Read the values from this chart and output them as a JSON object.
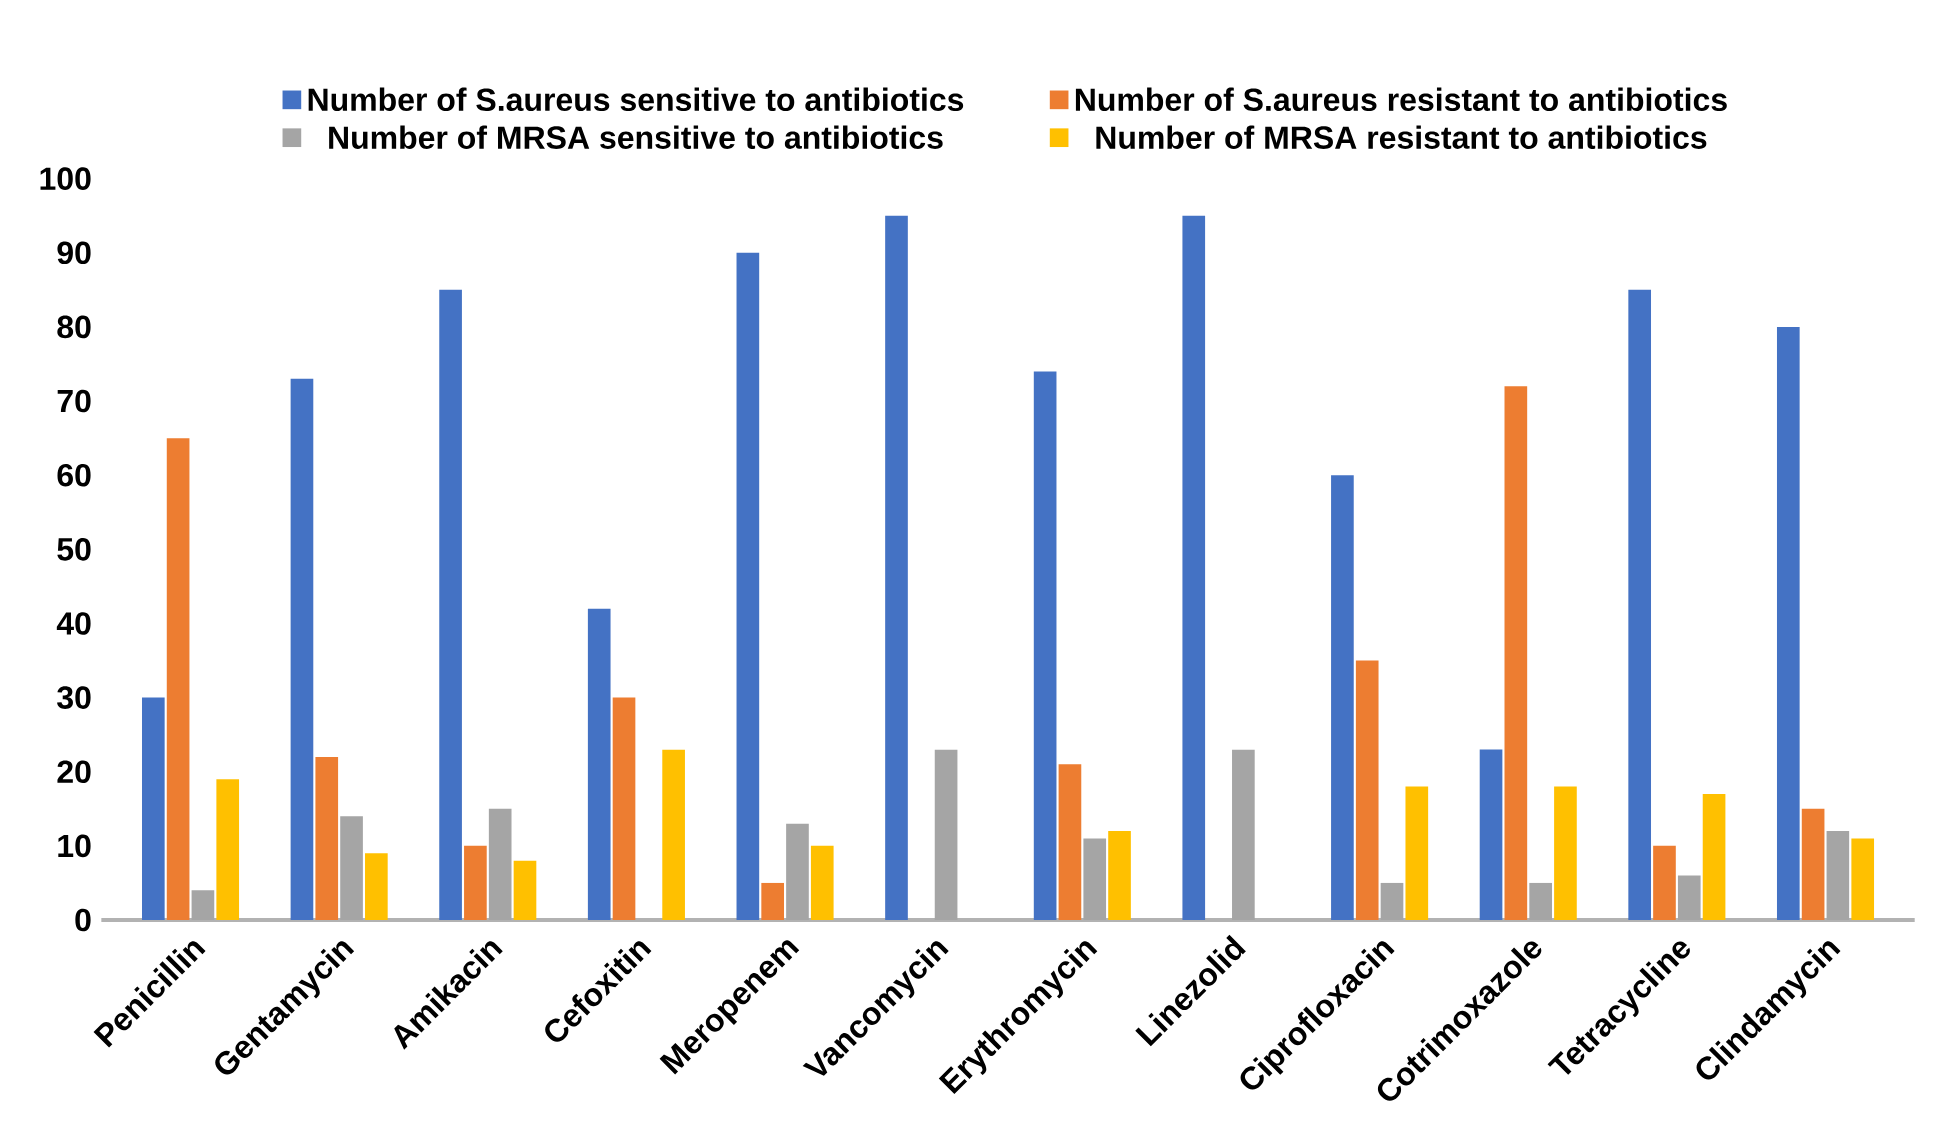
{
  "chart_data": {
    "type": "bar",
    "categories": [
      "Penicillin",
      "Gentamycin",
      "Amikacin",
      "Cefoxitin",
      "Meropenem",
      "Vancomycin",
      "Erythromycin",
      "Linezolid",
      "Ciprofloxacin",
      "Cotrimoxazole",
      "Tetracycline",
      "Clindamycin"
    ],
    "series": [
      {
        "name": "Number of S.aureus sensitive to antibiotics",
        "color": "#4472c4",
        "values": [
          30,
          73,
          85,
          42,
          90,
          95,
          74,
          95,
          60,
          23,
          85,
          80
        ]
      },
      {
        "name": "Number of S.aureus resistant to antibiotics",
        "color": "#ed7d31",
        "values": [
          65,
          22,
          10,
          30,
          5,
          0,
          21,
          0,
          35,
          72,
          10,
          15
        ]
      },
      {
        "name": "Number of MRSA sensitive to antibiotics",
        "color": "#a5a5a5",
        "values": [
          4,
          14,
          15,
          0,
          13,
          23,
          11,
          23,
          5,
          5,
          6,
          12
        ]
      },
      {
        "name": "Number of MRSA resistant to antibiotics",
        "color": "#ffc000",
        "values": [
          19,
          9,
          8,
          23,
          10,
          0,
          12,
          0,
          18,
          18,
          17,
          11
        ]
      }
    ],
    "ylim": [
      0,
      100
    ],
    "yticks": [
      0,
      10,
      20,
      30,
      40,
      50,
      60,
      70,
      80,
      90,
      100
    ],
    "grid": false,
    "legend": "top"
  }
}
